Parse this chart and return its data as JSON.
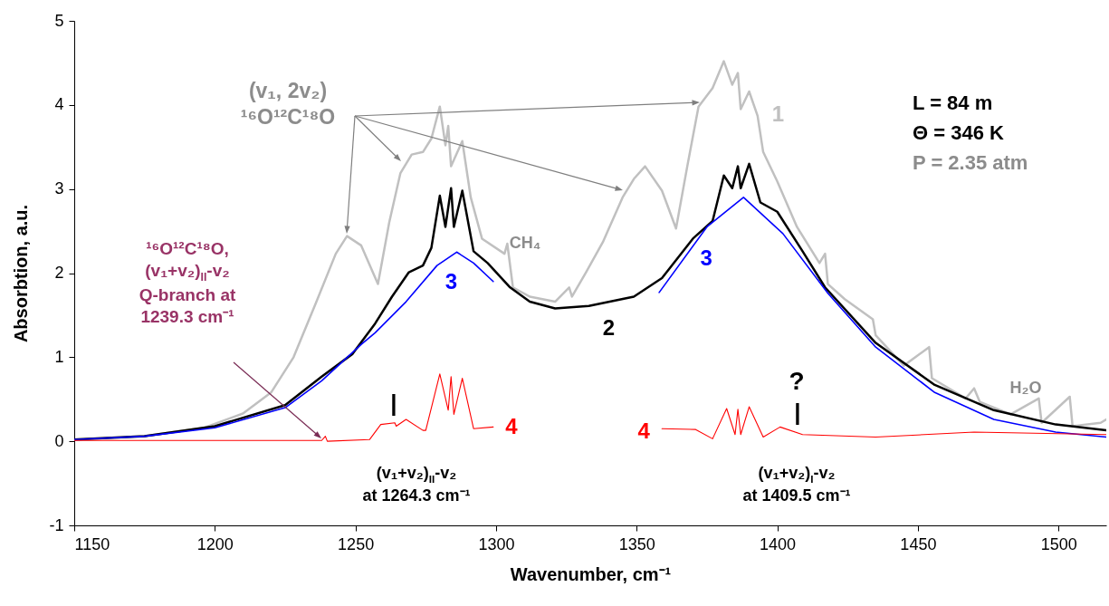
{
  "chart_data": {
    "type": "line",
    "xlabel": "Wavenumber, cm⁻¹",
    "ylabel": "Absorbtion, a.u.",
    "xlim": [
      1150,
      1517
    ],
    "ylim": [
      -1,
      5
    ],
    "xticks": [
      1150,
      1200,
      1250,
      1300,
      1350,
      1400,
      1450,
      1500
    ],
    "yticks": [
      -1,
      0,
      1,
      2,
      3,
      4,
      5
    ],
    "series": [
      {
        "name": "1",
        "color": "#c0c0c0",
        "x": [
          1150,
          1175,
          1196,
          1210,
          1220,
          1228,
          1236,
          1243,
          1247,
          1252,
          1258,
          1262,
          1266,
          1270,
          1274,
          1277,
          1280,
          1282,
          1283,
          1284,
          1288,
          1291,
          1295,
          1303,
          1304,
          1306,
          1312,
          1321,
          1326,
          1327,
          1332,
          1338,
          1345,
          1349,
          1353,
          1359,
          1364,
          1368,
          1372,
          1377,
          1381,
          1384,
          1386,
          1387,
          1390,
          1393,
          1395,
          1400,
          1407,
          1415,
          1417,
          1418,
          1424,
          1434,
          1435,
          1445,
          1454,
          1455,
          1467,
          1470,
          1472,
          1483,
          1493,
          1494,
          1504,
          1505,
          1515,
          1517
        ],
        "values": [
          0.02,
          0.06,
          0.16,
          0.33,
          0.58,
          1.0,
          1.65,
          2.23,
          2.44,
          2.33,
          1.87,
          2.6,
          3.19,
          3.41,
          3.44,
          3.6,
          3.98,
          3.52,
          3.75,
          3.27,
          3.57,
          2.9,
          2.41,
          2.23,
          2.35,
          1.83,
          1.72,
          1.66,
          1.83,
          1.72,
          2.01,
          2.37,
          2.9,
          3.12,
          3.27,
          2.98,
          2.53,
          3.27,
          3.98,
          4.2,
          4.52,
          4.24,
          4.38,
          3.95,
          4.16,
          3.87,
          3.44,
          3.09,
          2.55,
          2.12,
          2.23,
          1.87,
          1.69,
          1.45,
          1.26,
          0.9,
          1.12,
          0.75,
          0.51,
          0.63,
          0.47,
          0.32,
          0.51,
          0.22,
          0.53,
          0.18,
          0.22,
          0.26
        ]
      },
      {
        "name": "2",
        "color": "#000000",
        "x": [
          1150,
          1175,
          1200,
          1225,
          1238,
          1249,
          1257,
          1263,
          1269,
          1274,
          1277,
          1280,
          1282,
          1284,
          1285,
          1288,
          1292,
          1297,
          1305,
          1312,
          1321,
          1333,
          1349,
          1359,
          1370,
          1377,
          1381,
          1384,
          1386,
          1387,
          1390,
          1394,
          1400,
          1409,
          1417,
          1435,
          1456,
          1477,
          1499,
          1517
        ],
        "values": [
          0.02,
          0.06,
          0.18,
          0.43,
          0.77,
          1.04,
          1.4,
          1.72,
          2.01,
          2.09,
          2.3,
          2.92,
          2.55,
          3.01,
          2.55,
          2.98,
          2.26,
          2.12,
          1.83,
          1.66,
          1.58,
          1.61,
          1.72,
          1.94,
          2.41,
          2.62,
          3.16,
          3.01,
          3.27,
          3.01,
          3.3,
          2.84,
          2.73,
          2.26,
          1.83,
          1.17,
          0.67,
          0.37,
          0.2,
          0.13
        ]
      },
      {
        "name": "3",
        "color": "#0000ff",
        "x": [
          1150,
          1175,
          1200,
          1225,
          1238,
          1252,
          1257,
          1268,
          1279,
          1286,
          1292,
          1299,
          1330,
          1358,
          1375,
          1388,
          1402,
          1418,
          1435,
          1456,
          1477,
          1499,
          1517
        ],
        "values": [
          0.02,
          0.06,
          0.16,
          0.4,
          0.72,
          1.15,
          1.29,
          1.66,
          2.09,
          2.25,
          2.12,
          1.9,
          null,
          1.77,
          2.55,
          2.9,
          2.47,
          1.76,
          1.12,
          0.58,
          0.26,
          0.11,
          0.05
        ]
      },
      {
        "name": "4",
        "color": "#ff0000",
        "x": [
          1150,
          1200,
          1238,
          1239.3,
          1240,
          1255,
          1259,
          1264,
          1264.5,
          1268,
          1274,
          1275,
          1280,
          1283,
          1284,
          1285,
          1288,
          1292,
          1299,
          1330,
          1359,
          1371,
          1377,
          1382,
          1385,
          1386,
          1387,
          1390,
          1395,
          1401,
          1409,
          1435,
          1470,
          1517
        ],
        "values": [
          0.01,
          0.01,
          0.01,
          0.06,
          0.0,
          0.02,
          0.2,
          0.22,
          0.18,
          0.26,
          0.13,
          0.13,
          0.8,
          0.37,
          0.77,
          0.32,
          0.75,
          0.15,
          0.17,
          null,
          0.15,
          0.14,
          0.03,
          0.39,
          0.08,
          0.38,
          0.08,
          0.41,
          0.05,
          0.17,
          0.08,
          0.05,
          0.11,
          0.08
        ]
      }
    ],
    "annotations": [
      "(v₁, 2v₂)\n¹⁶O¹²C¹⁸O",
      "¹⁶O¹²C¹⁸O,\n(v₁+v₂)$_{II}$-v₂\nQ-branch at\n1239.3 cm⁻¹",
      "CH₄",
      "H₂O",
      "?",
      "|",
      "|",
      "(v₁+v₂)$_{II}$-v₂\nat 1264.3 cm⁻¹",
      "(v₁+v₂)$_{I}$-v₂\nat 1409.5 cm⁻¹",
      "L = 84 m",
      "Θ = 346 K",
      "P = 2.35 atm"
    ]
  }
}
